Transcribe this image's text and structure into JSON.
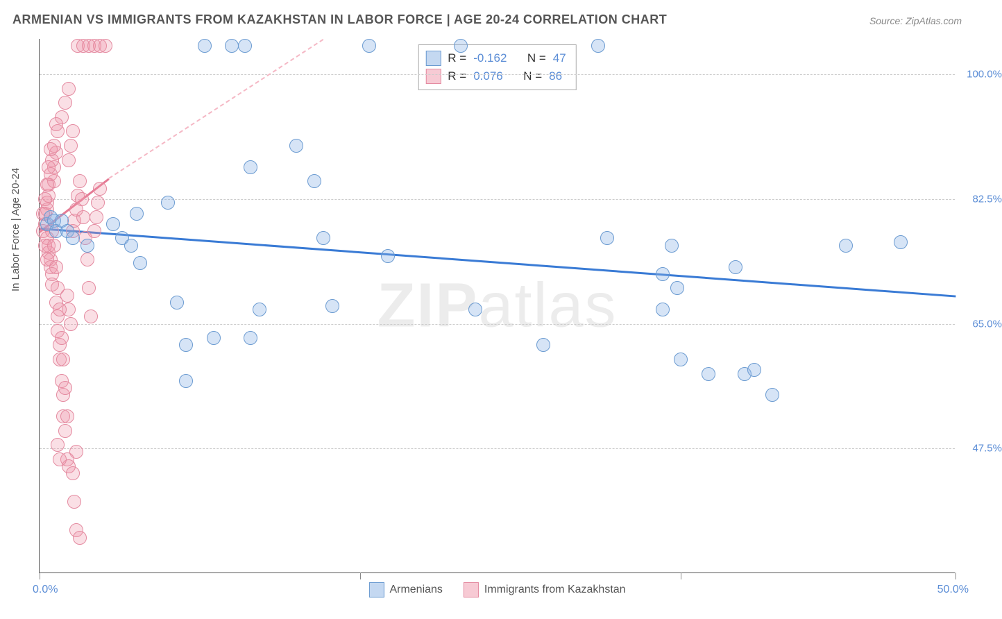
{
  "title": "ARMENIAN VS IMMIGRANTS FROM KAZAKHSTAN IN LABOR FORCE | AGE 20-24 CORRELATION CHART",
  "source": "Source: ZipAtlas.com",
  "ylabel": "In Labor Force | Age 20-24",
  "watermark_bold": "ZIP",
  "watermark_thin": "atlas",
  "chart": {
    "type": "scatter",
    "background_color": "#ffffff",
    "grid_color": "#cccccc",
    "xlim": [
      0,
      50
    ],
    "ylim": [
      30,
      105
    ],
    "yticks": [
      47.5,
      65.0,
      82.5,
      100.0
    ],
    "ytick_labels": [
      "47.5%",
      "65.0%",
      "82.5%",
      "100.0%"
    ],
    "xticks": [
      0,
      17.5,
      35,
      50
    ],
    "x_left_label": "0.0%",
    "x_right_label": "50.0%",
    "marker_radius": 10,
    "series": {
      "blue": {
        "name": "Armenians",
        "color_fill": "rgba(137,178,228,0.35)",
        "color_stroke": "#6b9bd1",
        "R": -0.162,
        "N": 47,
        "trend": {
          "x1": 0,
          "y1": 78.5,
          "x2": 50,
          "y2": 69.0,
          "color": "#3a7bd5",
          "width": 3
        },
        "points": [
          [
            0.4,
            79
          ],
          [
            0.6,
            80
          ],
          [
            0.8,
            79.5
          ],
          [
            0.9,
            78
          ],
          [
            1.2,
            79.5
          ],
          [
            1.5,
            78
          ],
          [
            1.8,
            77
          ],
          [
            5.3,
            80.5
          ],
          [
            4.0,
            79
          ],
          [
            4.5,
            77
          ],
          [
            5.0,
            76
          ],
          [
            2.6,
            76
          ],
          [
            5.5,
            73.5
          ],
          [
            7.0,
            82
          ],
          [
            7.5,
            68
          ],
          [
            8.0,
            62
          ],
          [
            9.0,
            104
          ],
          [
            8.0,
            57
          ],
          [
            9.5,
            63
          ],
          [
            10.5,
            104
          ],
          [
            11.2,
            104
          ],
          [
            11.5,
            87
          ],
          [
            12.0,
            67
          ],
          [
            11.5,
            63
          ],
          [
            14.0,
            90
          ],
          [
            15.0,
            85
          ],
          [
            15.5,
            77
          ],
          [
            16.0,
            67.5
          ],
          [
            18.0,
            104
          ],
          [
            19.0,
            74.5
          ],
          [
            23.0,
            104
          ],
          [
            23.8,
            67
          ],
          [
            27.5,
            62
          ],
          [
            34.0,
            67
          ],
          [
            30.5,
            104
          ],
          [
            31.0,
            77
          ],
          [
            34.5,
            76
          ],
          [
            34.0,
            72
          ],
          [
            34.8,
            70
          ],
          [
            35.0,
            60
          ],
          [
            36.5,
            58
          ],
          [
            38.0,
            73
          ],
          [
            38.5,
            58
          ],
          [
            39.0,
            58.5
          ],
          [
            40.0,
            55
          ],
          [
            44.0,
            76
          ],
          [
            47.0,
            76.5
          ]
        ]
      },
      "pink": {
        "name": "Immigrants from Kazakhstan",
        "color_fill": "rgba(240,150,170,0.30)",
        "color_stroke": "#e48aa0",
        "R": 0.076,
        "N": 86,
        "trend_solid": {
          "x1": 0,
          "y1": 78,
          "x2": 3.8,
          "y2": 85.5,
          "color": "#e57a94",
          "width": 3
        },
        "trend_dash": {
          "x1": 3.8,
          "y1": 85.5,
          "x2": 15.5,
          "y2": 105,
          "color": "#f5b8c5",
          "width": 2
        },
        "points": [
          [
            0.2,
            78
          ],
          [
            0.3,
            79
          ],
          [
            0.3,
            80.5
          ],
          [
            0.4,
            81
          ],
          [
            0.4,
            82
          ],
          [
            0.5,
            83
          ],
          [
            0.5,
            84.5
          ],
          [
            0.4,
            77
          ],
          [
            0.5,
            76
          ],
          [
            0.5,
            75
          ],
          [
            0.6,
            74
          ],
          [
            0.6,
            73
          ],
          [
            0.7,
            72
          ],
          [
            0.7,
            70.5
          ],
          [
            0.8,
            85
          ],
          [
            0.8,
            87
          ],
          [
            0.9,
            89
          ],
          [
            1.0,
            92
          ],
          [
            0.9,
            68
          ],
          [
            1.0,
            66
          ],
          [
            1.0,
            64
          ],
          [
            1.1,
            62
          ],
          [
            1.1,
            60
          ],
          [
            1.2,
            57
          ],
          [
            1.3,
            55
          ],
          [
            1.3,
            52
          ],
          [
            1.4,
            50
          ],
          [
            1.2,
            94
          ],
          [
            1.4,
            96
          ],
          [
            1.6,
            98
          ],
          [
            1.5,
            46
          ],
          [
            1.6,
            45
          ],
          [
            1.8,
            44
          ],
          [
            1.9,
            40
          ],
          [
            2.0,
            36
          ],
          [
            2.2,
            35
          ],
          [
            1.8,
            78
          ],
          [
            1.9,
            79.5
          ],
          [
            2.0,
            81
          ],
          [
            2.1,
            83
          ],
          [
            2.2,
            85
          ],
          [
            2.3,
            82.5
          ],
          [
            2.4,
            80
          ],
          [
            2.5,
            77
          ],
          [
            2.6,
            74
          ],
          [
            2.7,
            70
          ],
          [
            2.8,
            66
          ],
          [
            1.6,
            88
          ],
          [
            1.7,
            90
          ],
          [
            1.8,
            92
          ],
          [
            1.5,
            69
          ],
          [
            1.6,
            67
          ],
          [
            1.7,
            65
          ],
          [
            2.1,
            104
          ],
          [
            2.4,
            104
          ],
          [
            2.7,
            104
          ],
          [
            3.0,
            104
          ],
          [
            3.3,
            104
          ],
          [
            3.6,
            104
          ],
          [
            3.0,
            78
          ],
          [
            3.1,
            80
          ],
          [
            3.2,
            82
          ],
          [
            3.3,
            84
          ],
          [
            1.0,
            48
          ],
          [
            1.1,
            46
          ],
          [
            0.6,
            86
          ],
          [
            0.7,
            88
          ],
          [
            0.8,
            90
          ],
          [
            0.9,
            93
          ],
          [
            0.3,
            76
          ],
          [
            0.4,
            74
          ],
          [
            0.2,
            80.5
          ],
          [
            0.3,
            82.5
          ],
          [
            0.4,
            84.5
          ],
          [
            0.5,
            87
          ],
          [
            0.6,
            89.5
          ],
          [
            0.7,
            78
          ],
          [
            0.8,
            76
          ],
          [
            0.9,
            73
          ],
          [
            1.0,
            70
          ],
          [
            1.1,
            67
          ],
          [
            1.2,
            63
          ],
          [
            1.3,
            60
          ],
          [
            1.4,
            56
          ],
          [
            1.5,
            52
          ],
          [
            2.0,
            47
          ]
        ]
      }
    }
  },
  "legend_stats": {
    "r_label": "R =",
    "n_label": "N =",
    "blue_r": "-0.162",
    "blue_n": "47",
    "pink_r": "0.076",
    "pink_n": "86"
  },
  "bottom_legend": {
    "blue": "Armenians",
    "pink": "Immigrants from Kazakhstan"
  }
}
